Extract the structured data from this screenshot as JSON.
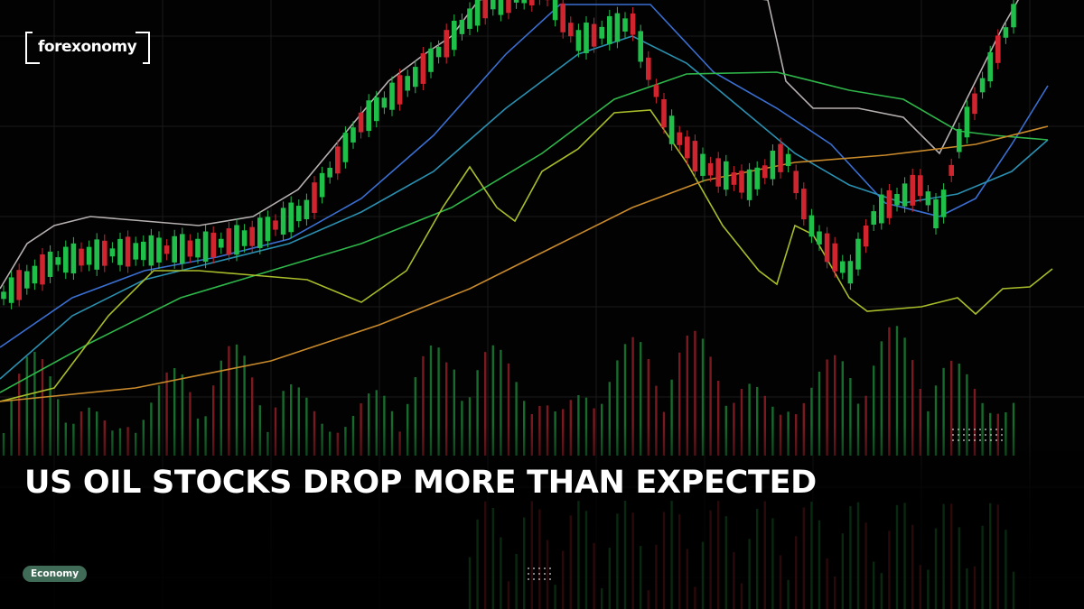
{
  "logo": "forexonomy",
  "headline": "US OIL STOCKS DROP MORE THAN EXPECTED",
  "tag": "Economy"
}
